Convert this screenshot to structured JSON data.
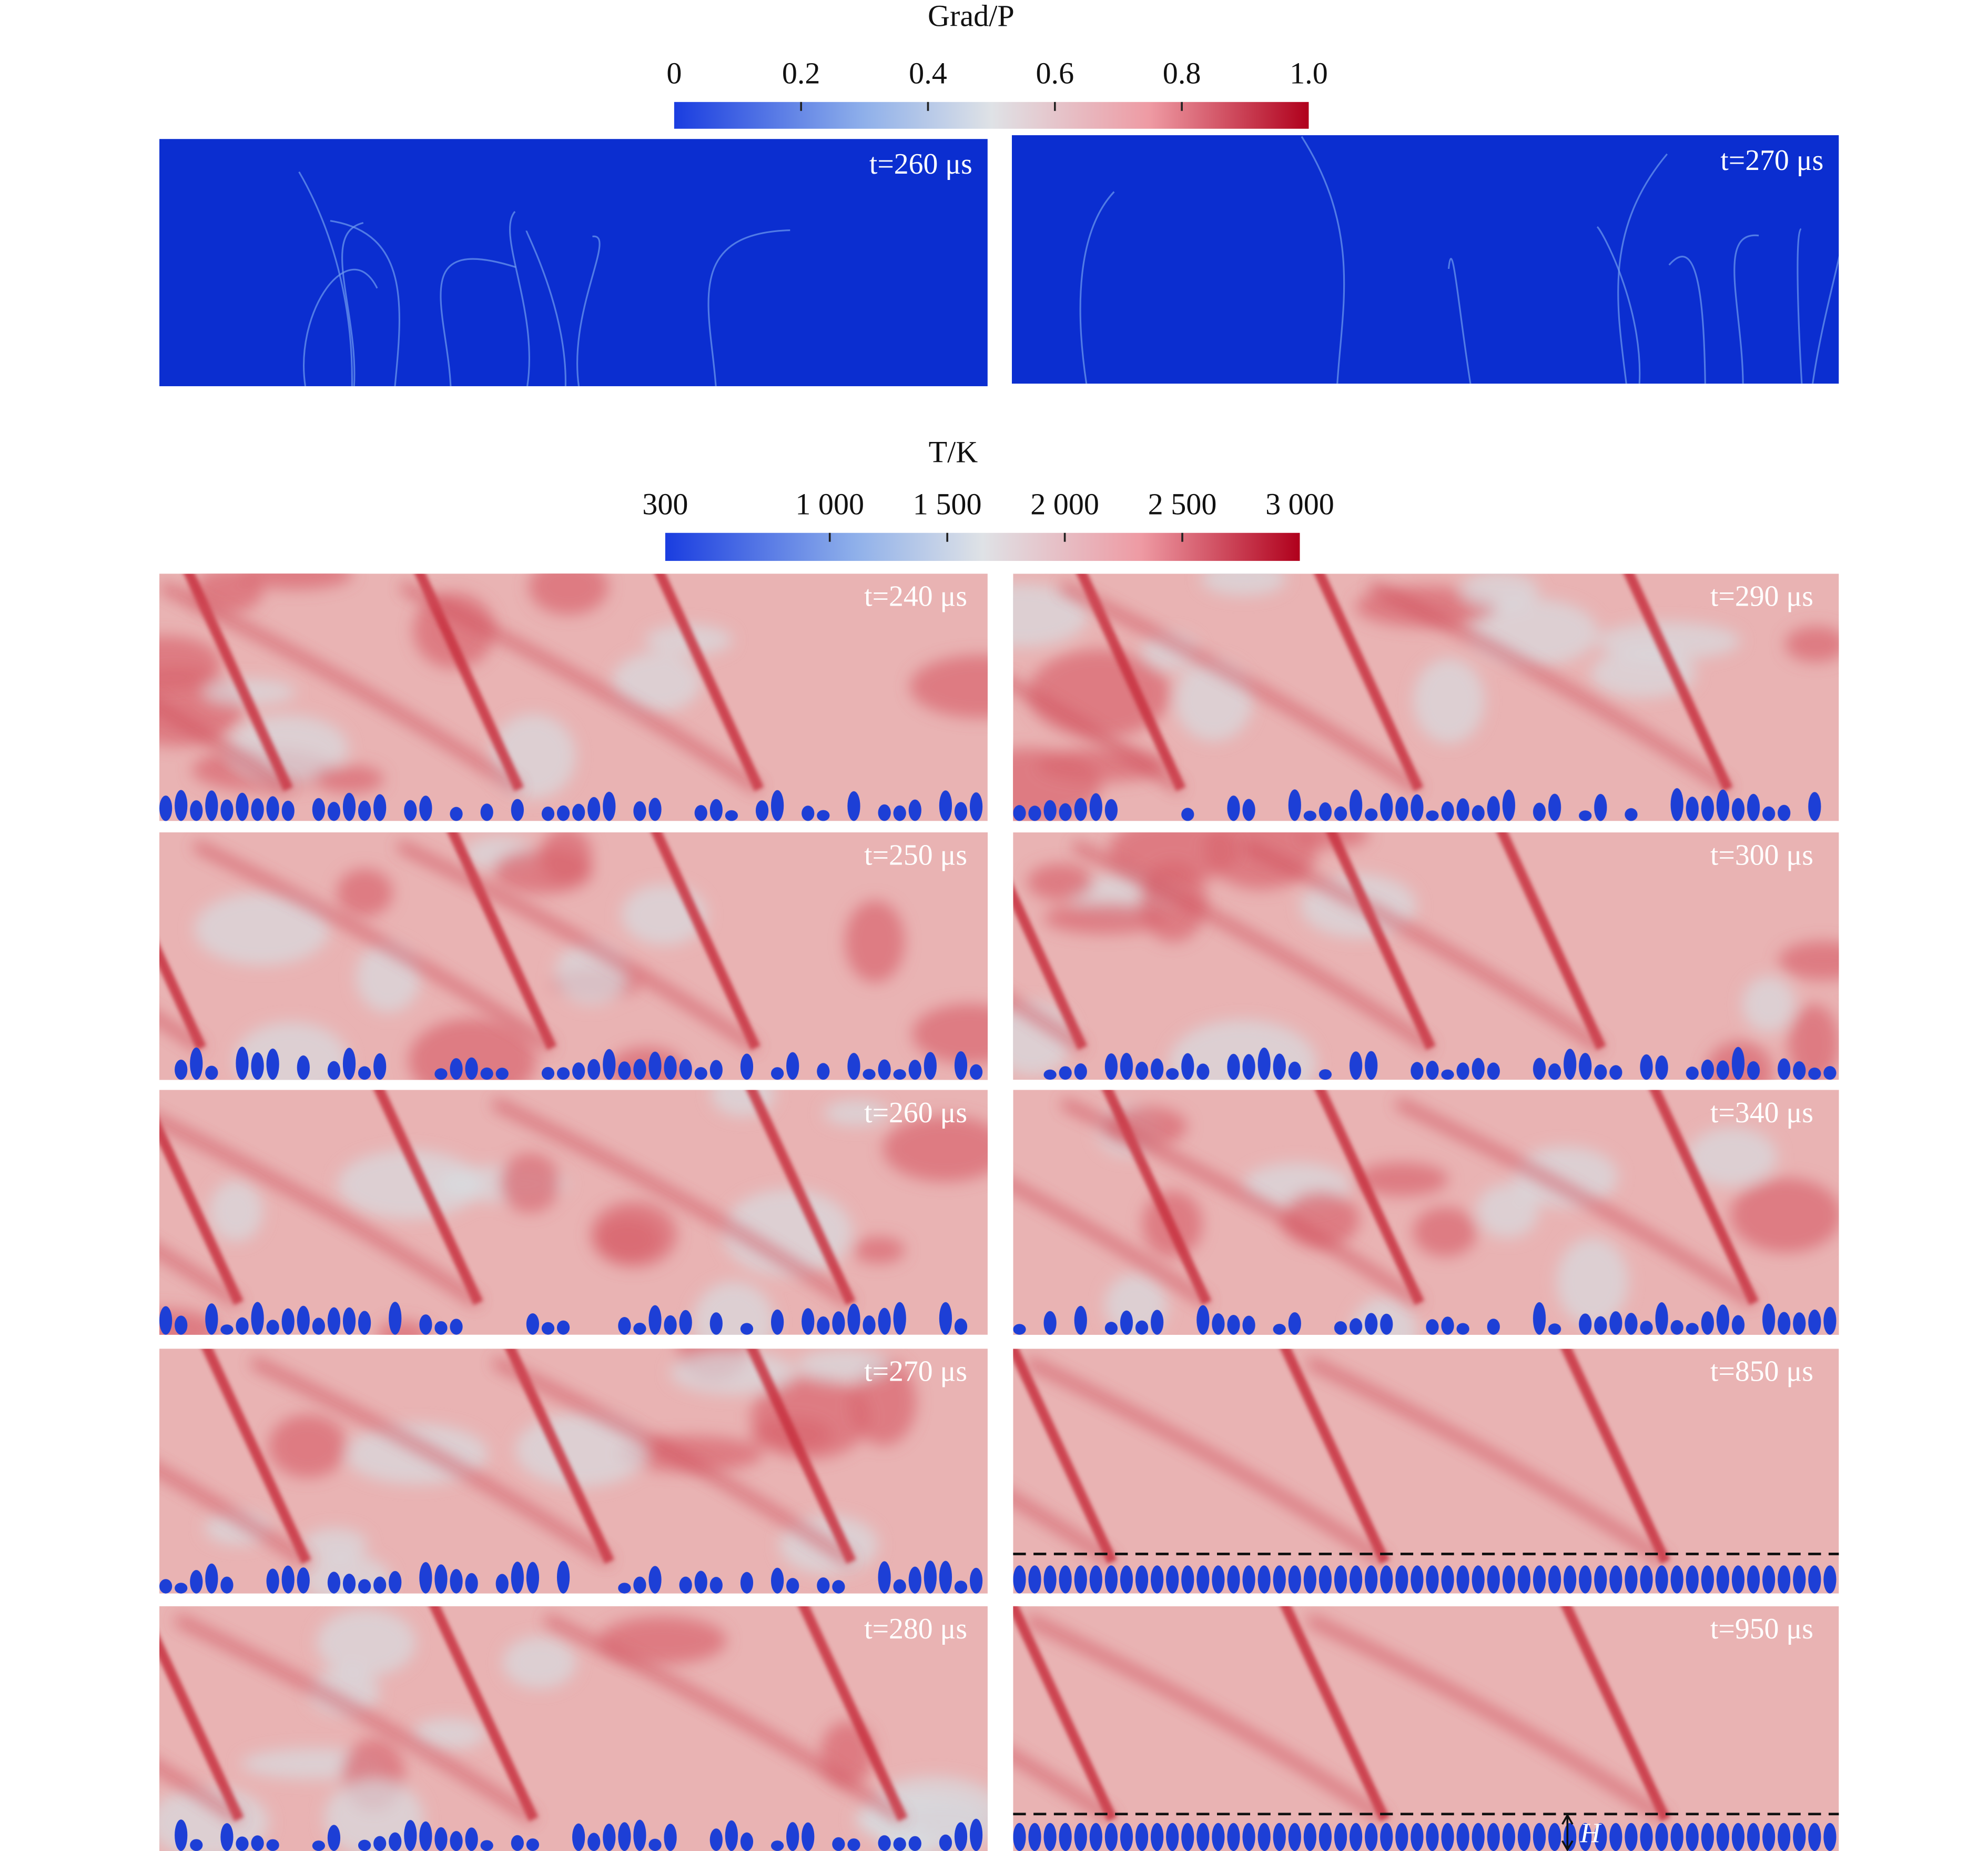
{
  "colorbars": [
    {
      "title": "Grad/P",
      "ticks": [
        0,
        0.2,
        0.4,
        0.6,
        0.8,
        {
          "value": 1.0,
          "label": "1.0"
        }
      ]
    },
    {
      "title": "T/K",
      "ticks": [
        300,
        {
          "value": 1000,
          "label": "1 000"
        },
        {
          "value": 1500,
          "label": "1 500"
        },
        {
          "value": 2000,
          "label": "2 000"
        },
        {
          "value": 2500,
          "label": "2 500"
        },
        {
          "value": 3000,
          "label": "3 000"
        }
      ]
    }
  ],
  "grad_panels": [
    "t=260 μs",
    "t=270 μs"
  ],
  "temperature_panels": [
    "t=240 μs",
    "t=250 μs",
    "t=260 μs",
    "t=270 μs",
    "t=280 μs",
    "t=290 μs",
    "t=300 μs",
    "t=340 μs",
    "t=850 μs",
    "t=950 μs"
  ],
  "annotation": "H"
}
